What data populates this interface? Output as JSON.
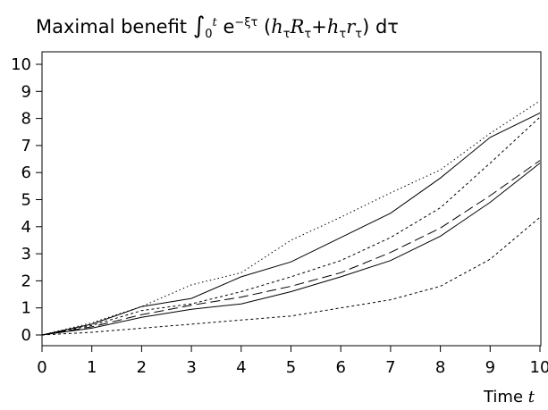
{
  "chart_data": {
    "type": "line",
    "title_prefix": "Maximal benefit",
    "xlabel": "Time",
    "xlabel_var": "t",
    "xlim": [
      0,
      10
    ],
    "ylim": [
      0,
      10
    ],
    "x_ticks": [
      0,
      1,
      2,
      3,
      4,
      5,
      6,
      7,
      8,
      9,
      10
    ],
    "y_ticks": [
      0,
      1,
      2,
      3,
      4,
      5,
      6,
      7,
      8,
      9,
      10
    ],
    "x": [
      0,
      1,
      2,
      3,
      4,
      5,
      6,
      7,
      8,
      9,
      10
    ],
    "grid": false,
    "series": [
      {
        "style": "dotted",
        "values": [
          0,
          0.45,
          1.05,
          1.85,
          2.3,
          3.5,
          4.35,
          5.25,
          6.1,
          7.45,
          8.65
        ]
      },
      {
        "style": "solid",
        "values": [
          0,
          0.4,
          1.05,
          1.35,
          2.15,
          2.7,
          3.6,
          4.5,
          5.8,
          7.3,
          8.2
        ]
      },
      {
        "style": "short-dash",
        "values": [
          0,
          0.35,
          0.9,
          1.15,
          1.6,
          2.15,
          2.75,
          3.6,
          4.7,
          6.35,
          8.05
        ]
      },
      {
        "style": "long-dash",
        "values": [
          0,
          0.3,
          0.75,
          1.1,
          1.4,
          1.8,
          2.3,
          3.05,
          3.95,
          5.15,
          6.45
        ]
      },
      {
        "style": "solid",
        "values": [
          0,
          0.25,
          0.65,
          0.95,
          1.15,
          1.6,
          2.15,
          2.75,
          3.65,
          4.9,
          6.35
        ]
      },
      {
        "style": "short-dash",
        "values": [
          0,
          0.1,
          0.25,
          0.4,
          0.55,
          0.7,
          1.0,
          1.3,
          1.8,
          2.8,
          4.35
        ]
      }
    ]
  }
}
